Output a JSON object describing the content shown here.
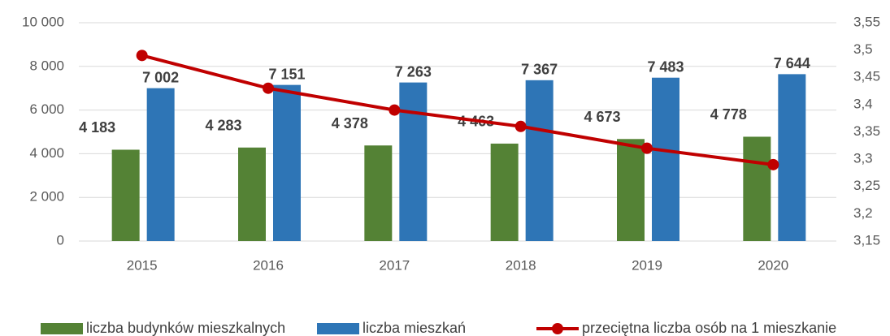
{
  "chart_data": {
    "type": "bar",
    "categories": [
      "2015",
      "2016",
      "2017",
      "2018",
      "2019",
      "2020"
    ],
    "series": [
      {
        "name": "liczba budynków mieszkalnych",
        "color": "#548235",
        "type": "bar",
        "values": [
          4183,
          4283,
          4378,
          4463,
          4673,
          4778
        ],
        "value_labels": [
          "4 183",
          "4 283",
          "4 378",
          "4 463",
          "4 673",
          "4 778"
        ]
      },
      {
        "name": "liczba mieszkań",
        "color": "#2e75b6",
        "type": "bar",
        "values": [
          7002,
          7151,
          7263,
          7367,
          7483,
          7644
        ],
        "value_labels": [
          "7 002",
          "7 151",
          "7 263",
          "7 367",
          "7 483",
          "7 644"
        ]
      },
      {
        "name": "przeciętna liczba osób na 1 mieszkanie",
        "color": "#c00000",
        "type": "line",
        "axis": "y2",
        "values": [
          3.49,
          3.43,
          3.39,
          3.36,
          3.32,
          3.29
        ]
      }
    ],
    "ylim": [
      0,
      10000
    ],
    "yticks": [
      0,
      {
        "value": 2000,
        "label": "2 000"
      },
      {
        "value": 4000,
        "label": "4 000"
      },
      {
        "value": 6000,
        "label": "6 000"
      },
      {
        "value": 8000,
        "label": "8 000"
      },
      {
        "value": 10000,
        "label": "10 000"
      }
    ],
    "y2lim": [
      3.15,
      3.55
    ],
    "y2ticks": [
      {
        "value": 3.15,
        "label": "3,15"
      },
      {
        "value": 3.2,
        "label": "3,2"
      },
      {
        "value": 3.25,
        "label": "3,25"
      },
      {
        "value": 3.3,
        "label": "3,3"
      },
      {
        "value": 3.35,
        "label": "3,35"
      },
      {
        "value": 3.4,
        "label": "3,4"
      },
      {
        "value": 3.45,
        "label": "3,45"
      },
      {
        "value": 3.5,
        "label": "3,5"
      },
      {
        "value": 3.55,
        "label": "3,55"
      }
    ],
    "grid": true,
    "legend": "bottom"
  }
}
